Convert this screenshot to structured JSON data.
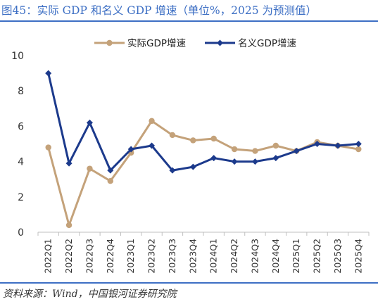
{
  "title": "图45：实际 GDP 和名义 GDP 增速（单位%，2025 为预测值）",
  "source": "资料来源：Wind，中国银河证券研究院",
  "colors": {
    "title": "#3d6fc4",
    "real": "#c4a27a",
    "nominal": "#1c3a8c",
    "axis": "#bfbfbf"
  },
  "chart_data": {
    "type": "line",
    "categories": [
      "2022Q1",
      "2022Q2",
      "2022Q3",
      "2022Q4",
      "2023Q1",
      "2023Q2",
      "2023Q3",
      "2023Q4",
      "2024Q1",
      "2024Q2",
      "2024Q3",
      "2024Q4",
      "2025Q1",
      "2025Q2",
      "2025Q3",
      "2025Q4"
    ],
    "series": [
      {
        "name": "实际GDP增速",
        "marker": "circle",
        "values": [
          4.8,
          0.4,
          3.6,
          2.9,
          4.5,
          6.3,
          5.5,
          5.2,
          5.3,
          4.7,
          4.6,
          4.9,
          4.6,
          5.1,
          4.9,
          4.7
        ]
      },
      {
        "name": "名义GDP增速",
        "marker": "diamond",
        "values": [
          9.0,
          3.9,
          6.2,
          3.5,
          4.7,
          4.9,
          3.5,
          3.7,
          4.2,
          4.0,
          4.0,
          4.2,
          4.6,
          5.0,
          4.9,
          5.0
        ]
      }
    ],
    "ylim": [
      0,
      10
    ],
    "yticks": [
      0,
      2,
      4,
      6,
      8,
      10
    ],
    "legend_position": "top",
    "grid": false
  }
}
